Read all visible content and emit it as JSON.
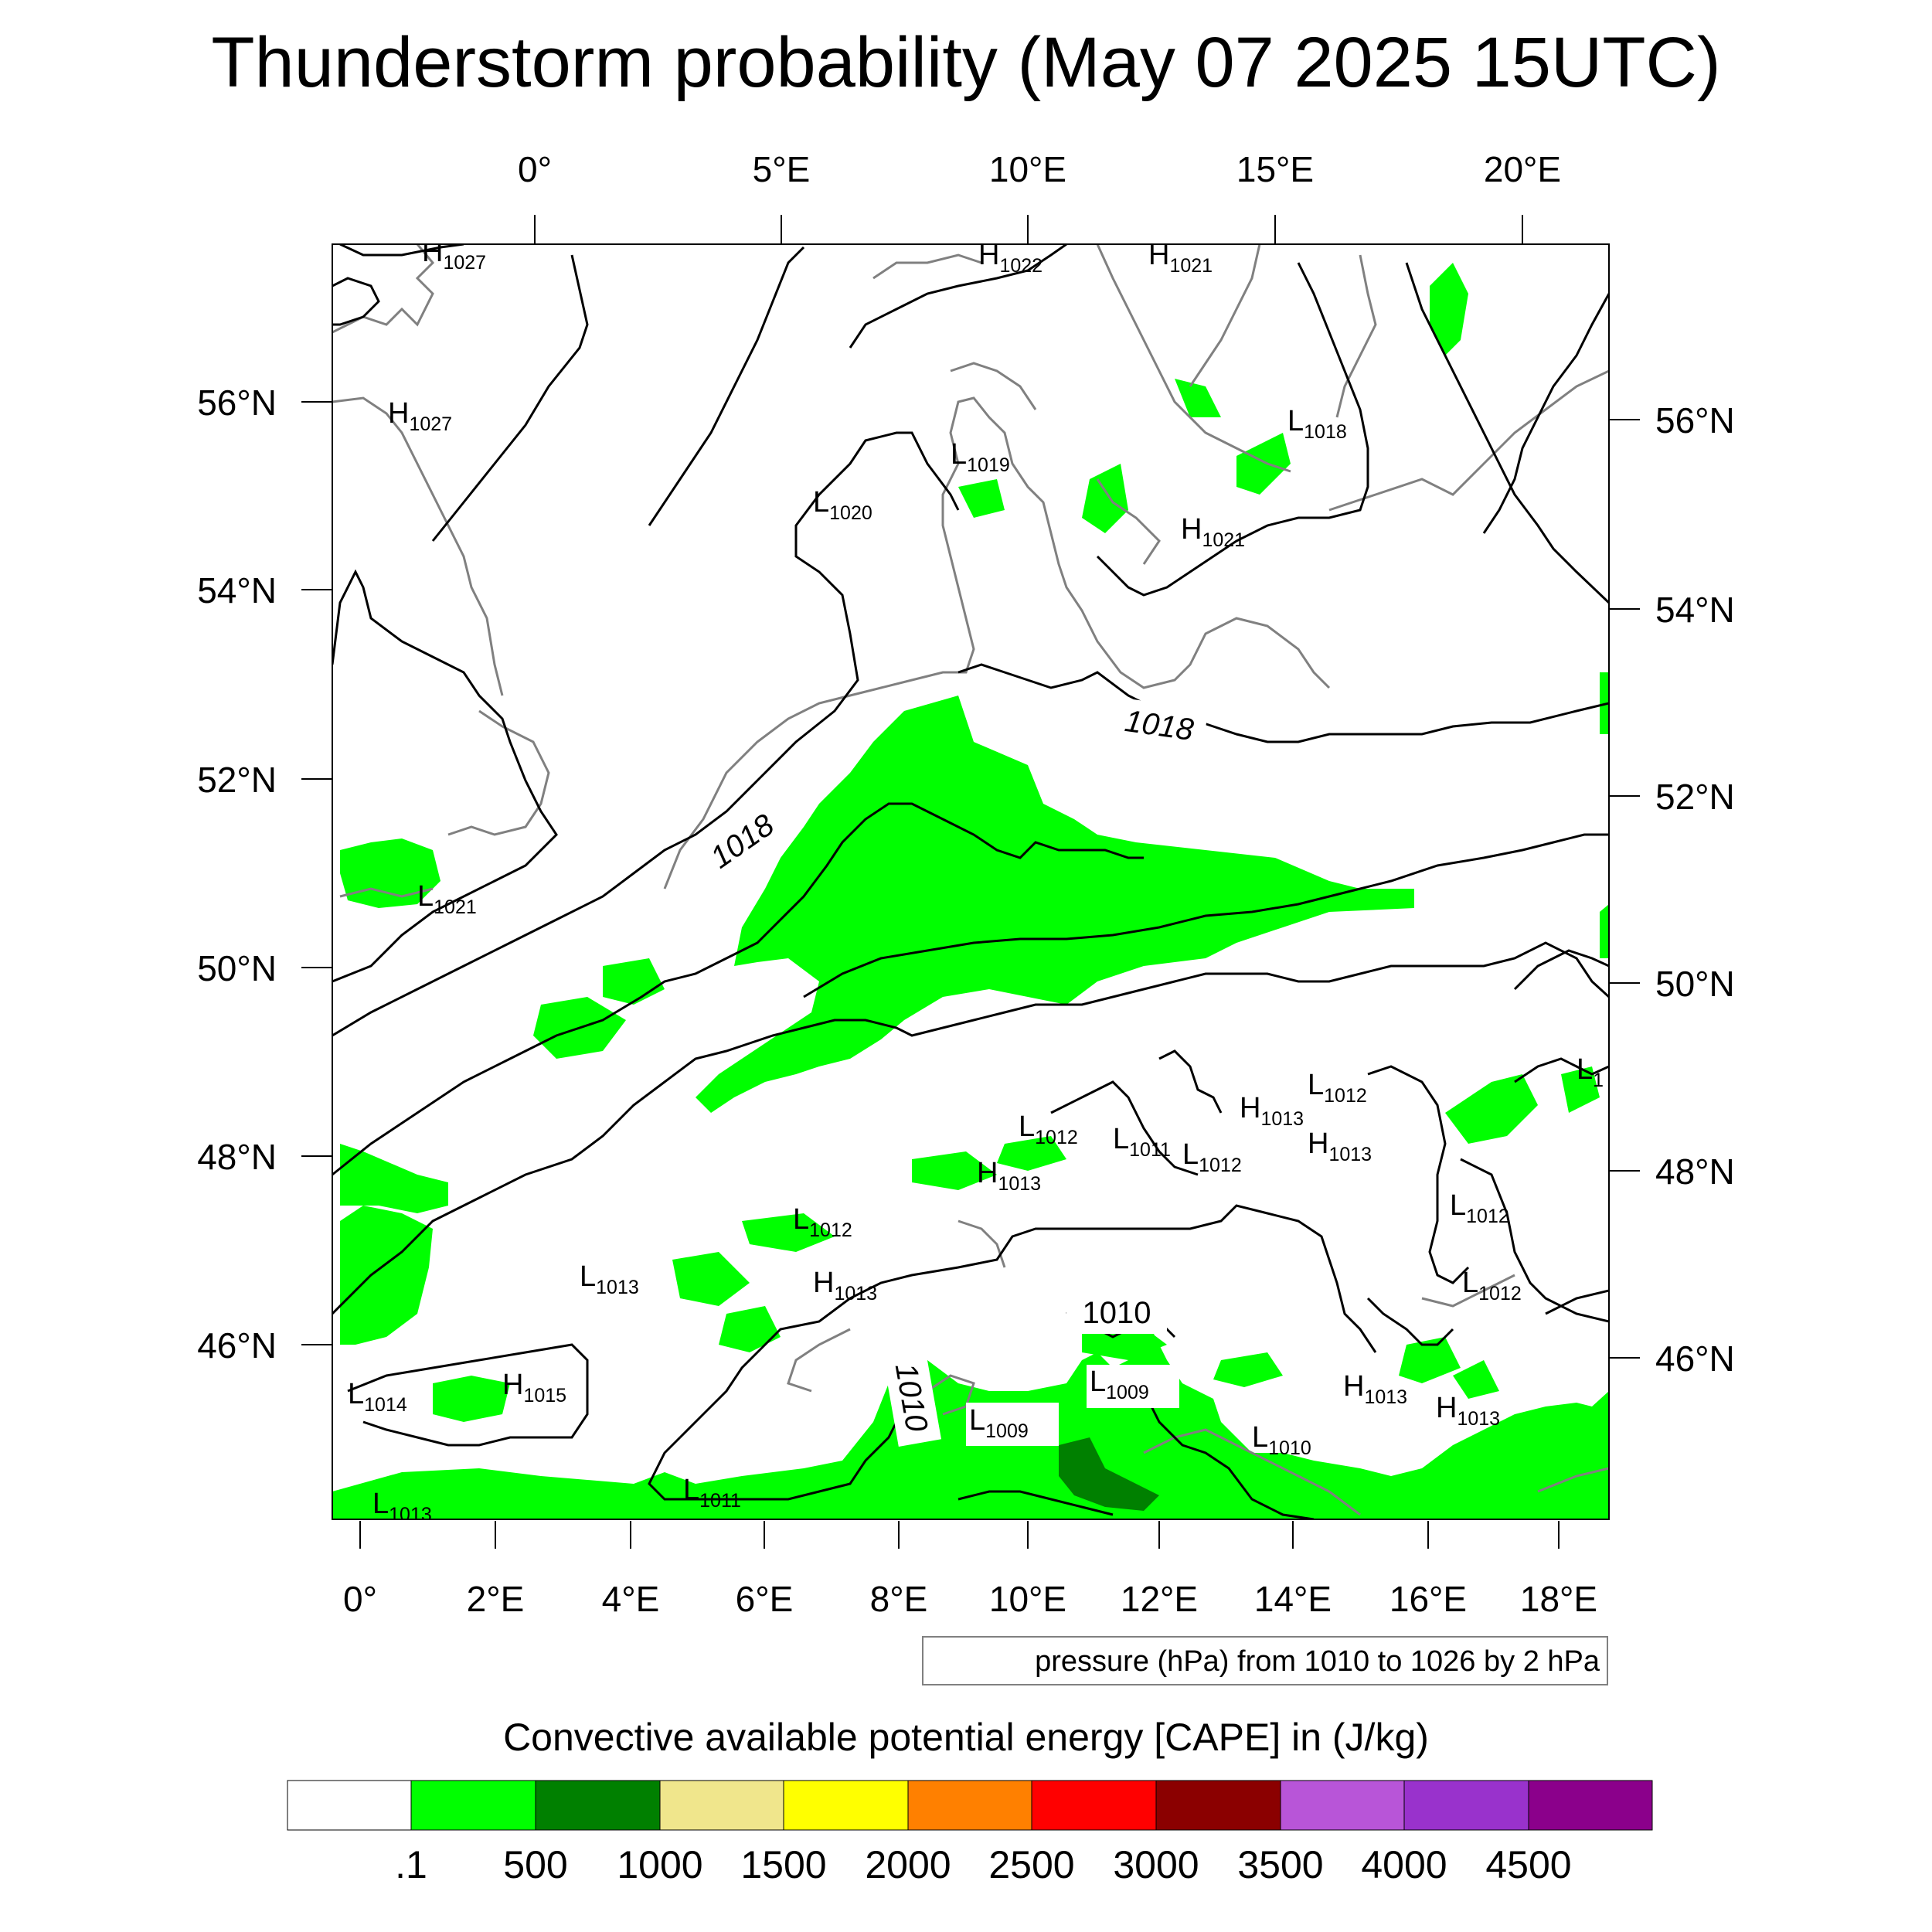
{
  "title": "Thunderstorm probability (May 07 2025 15UTC)",
  "top_lon_labels": [
    "0°",
    "5°E",
    "10°E",
    "15°E",
    "20°E"
  ],
  "bottom_lon_labels": [
    "0°",
    "2°E",
    "4°E",
    "6°E",
    "8°E",
    "10°E",
    "12°E",
    "14°E",
    "16°E",
    "18°E"
  ],
  "left_lat_labels": [
    "56°N",
    "54°N",
    "52°N",
    "50°N",
    "48°N",
    "46°N"
  ],
  "right_lat_labels": [
    "56°N",
    "54°N",
    "52°N",
    "50°N",
    "48°N",
    "46°N"
  ],
  "pressure_info": "pressure (hPa) from 1010 to 1026 by 2 hPa",
  "colorbar_title": "Convective available potential energy [CAPE] in (J/kg)",
  "colorbar_labels": [
    ".1",
    "500",
    "1000",
    "1500",
    "2000",
    "2500",
    "3000",
    "3500",
    "4000",
    "4500"
  ],
  "colorbar_colors": [
    "#ffffff",
    "#00ff00",
    "#008000",
    "#f0e68c",
    "#ffff00",
    "#ff8000",
    "#ff0000",
    "#8b0000",
    "#b855d8",
    "#9932cc",
    "#8b008b"
  ],
  "contour_labels": [
    "1018",
    "1018",
    "1010",
    "1010"
  ],
  "pressure_centers": [
    {
      "letter": "H",
      "value": "1027"
    },
    {
      "letter": "H",
      "value": "1027"
    },
    {
      "letter": "H",
      "value": "1022"
    },
    {
      "letter": "H",
      "value": "1021"
    },
    {
      "letter": "L",
      "value": "1018"
    },
    {
      "letter": "L",
      "value": "1019"
    },
    {
      "letter": "L",
      "value": "1020"
    },
    {
      "letter": "H",
      "value": "1021"
    },
    {
      "letter": "L",
      "value": "1021"
    },
    {
      "letter": "L",
      "value": "1"
    },
    {
      "letter": "L",
      "value": "1012"
    },
    {
      "letter": "H",
      "value": "1013"
    },
    {
      "letter": "L",
      "value": "1012"
    },
    {
      "letter": "L",
      "value": "1011"
    },
    {
      "letter": "L",
      "value": "1012"
    },
    {
      "letter": "H",
      "value": "1013"
    },
    {
      "letter": "H",
      "value": "1013"
    },
    {
      "letter": "L",
      "value": "1012"
    },
    {
      "letter": "L",
      "value": "1012"
    },
    {
      "letter": "L",
      "value": "1013"
    },
    {
      "letter": "H",
      "value": "1013"
    },
    {
      "letter": "L",
      "value": "1012"
    },
    {
      "letter": "L",
      "value": "1014"
    },
    {
      "letter": "H",
      "value": "1015"
    },
    {
      "letter": "L",
      "value": "1009"
    },
    {
      "letter": "L",
      "value": "1009"
    },
    {
      "letter": "H",
      "value": "1013"
    },
    {
      "letter": "H",
      "value": "1013"
    },
    {
      "letter": "L",
      "value": "1010"
    },
    {
      "letter": "L",
      "value": "1011"
    },
    {
      "letter": "L",
      "value": "1013"
    }
  ],
  "colors": {
    "cape_low": "#00ff00",
    "cape_mid": "#008000",
    "coastline": "#808080",
    "isobar": "#000000"
  }
}
